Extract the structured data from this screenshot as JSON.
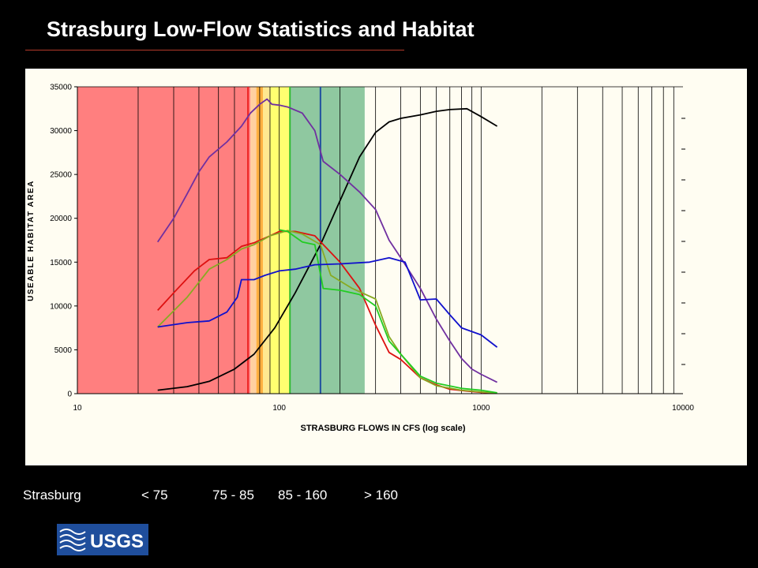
{
  "slide": {
    "title": "Strasburg Low-Flow Statistics and Habitat"
  },
  "legend_row": {
    "site": "Strasburg",
    "bins": [
      "< 75",
      "75 - 85",
      "85 - 160",
      "> 160"
    ]
  },
  "logo": {
    "text": "USGS",
    "color": "#1f4e9c"
  },
  "chart_data": {
    "type": "line",
    "xlabel": "STRASBURG FLOWS IN CFS (log scale)",
    "ylabel": "USEABLE HABITAT AREA",
    "xscale": "log",
    "xlim": [
      10,
      10000
    ],
    "ylim": [
      0,
      35000
    ],
    "x_ticks": [
      10,
      100,
      1000,
      10000
    ],
    "y_ticks": [
      0,
      5000,
      10000,
      15000,
      20000,
      25000,
      30000,
      35000
    ],
    "grid": true,
    "bands": [
      {
        "from": 10,
        "to": 72,
        "color": "#ff7f7f"
      },
      {
        "from": 72,
        "to": 77,
        "color": "#ffd0a0"
      },
      {
        "from": 77,
        "to": 83,
        "color": "#ffb040"
      },
      {
        "from": 83,
        "to": 90,
        "color": "#ffe890"
      },
      {
        "from": 90,
        "to": 113,
        "color": "#ffff70"
      },
      {
        "from": 113,
        "to": 265,
        "color": "#8fc8a0"
      }
    ],
    "vertical_lines": [
      {
        "x": 70,
        "color": "#ee2222"
      },
      {
        "x": 113,
        "color": "#33bb33"
      },
      {
        "x": 160,
        "color": "#1f4f9f"
      }
    ],
    "series": [
      {
        "color": "#000000",
        "points": [
          [
            25,
            400
          ],
          [
            35,
            800
          ],
          [
            45,
            1400
          ],
          [
            60,
            2800
          ],
          [
            75,
            4500
          ],
          [
            95,
            7500
          ],
          [
            120,
            11500
          ],
          [
            160,
            17000
          ],
          [
            200,
            22000
          ],
          [
            250,
            27000
          ],
          [
            300,
            29800
          ],
          [
            350,
            31000
          ],
          [
            400,
            31400
          ],
          [
            500,
            31800
          ],
          [
            600,
            32200
          ],
          [
            700,
            32400
          ],
          [
            850,
            32500
          ],
          [
            1000,
            31600
          ],
          [
            1200,
            30500
          ]
        ]
      },
      {
        "color": "#7030a0",
        "points": [
          [
            25,
            17300
          ],
          [
            30,
            20000
          ],
          [
            35,
            22800
          ],
          [
            40,
            25300
          ],
          [
            45,
            27000
          ],
          [
            55,
            28700
          ],
          [
            65,
            30500
          ],
          [
            72,
            32000
          ],
          [
            80,
            33000
          ],
          [
            87,
            33600
          ],
          [
            92,
            33000
          ],
          [
            100,
            32900
          ],
          [
            110,
            32700
          ],
          [
            130,
            32000
          ],
          [
            150,
            30000
          ],
          [
            165,
            26500
          ],
          [
            200,
            25000
          ],
          [
            250,
            23000
          ],
          [
            300,
            21000
          ],
          [
            350,
            17500
          ],
          [
            400,
            15500
          ],
          [
            500,
            12000
          ],
          [
            600,
            8500
          ],
          [
            700,
            6000
          ],
          [
            800,
            4000
          ],
          [
            900,
            2800
          ],
          [
            1000,
            2200
          ],
          [
            1200,
            1300
          ]
        ]
      },
      {
        "color": "#dd1111",
        "points": [
          [
            25,
            9500
          ],
          [
            30,
            11500
          ],
          [
            38,
            14000
          ],
          [
            45,
            15300
          ],
          [
            55,
            15500
          ],
          [
            65,
            16800
          ],
          [
            75,
            17200
          ],
          [
            90,
            18000
          ],
          [
            100,
            18500
          ],
          [
            120,
            18500
          ],
          [
            150,
            18000
          ],
          [
            200,
            15000
          ],
          [
            250,
            12000
          ],
          [
            300,
            7800
          ],
          [
            350,
            4700
          ],
          [
            400,
            3900
          ],
          [
            500,
            1800
          ],
          [
            600,
            1000
          ],
          [
            700,
            500
          ],
          [
            850,
            300
          ],
          [
            1000,
            150
          ],
          [
            1200,
            50
          ]
        ]
      },
      {
        "color": "#88aa22",
        "points": [
          [
            25,
            7600
          ],
          [
            35,
            11000
          ],
          [
            45,
            14200
          ],
          [
            55,
            15300
          ],
          [
            65,
            16500
          ],
          [
            75,
            17000
          ],
          [
            90,
            18000
          ],
          [
            110,
            18600
          ],
          [
            130,
            18200
          ],
          [
            160,
            17000
          ],
          [
            180,
            13500
          ],
          [
            230,
            12000
          ],
          [
            300,
            10800
          ],
          [
            350,
            6500
          ],
          [
            400,
            4500
          ],
          [
            500,
            1800
          ],
          [
            600,
            900
          ],
          [
            800,
            400
          ],
          [
            1000,
            200
          ],
          [
            1200,
            50
          ]
        ]
      },
      {
        "color": "#22cc22",
        "points": [
          [
            100,
            18700
          ],
          [
            110,
            18500
          ],
          [
            130,
            17300
          ],
          [
            150,
            17000
          ],
          [
            165,
            12000
          ],
          [
            200,
            11800
          ],
          [
            250,
            11300
          ],
          [
            300,
            10000
          ],
          [
            350,
            6000
          ],
          [
            400,
            4500
          ],
          [
            500,
            2000
          ],
          [
            600,
            1200
          ],
          [
            800,
            600
          ],
          [
            1000,
            400
          ],
          [
            1200,
            100
          ]
        ]
      },
      {
        "color": "#1111cc",
        "points": [
          [
            25,
            7600
          ],
          [
            35,
            8100
          ],
          [
            45,
            8300
          ],
          [
            55,
            9300
          ],
          [
            62,
            11000
          ],
          [
            65,
            13000
          ],
          [
            75,
            13000
          ],
          [
            85,
            13500
          ],
          [
            100,
            14000
          ],
          [
            120,
            14200
          ],
          [
            150,
            14700
          ],
          [
            200,
            14800
          ],
          [
            280,
            15000
          ],
          [
            350,
            15500
          ],
          [
            420,
            15000
          ],
          [
            500,
            10700
          ],
          [
            600,
            10800
          ],
          [
            700,
            9000
          ],
          [
            800,
            7500
          ],
          [
            1000,
            6700
          ],
          [
            1200,
            5300
          ]
        ]
      }
    ]
  }
}
